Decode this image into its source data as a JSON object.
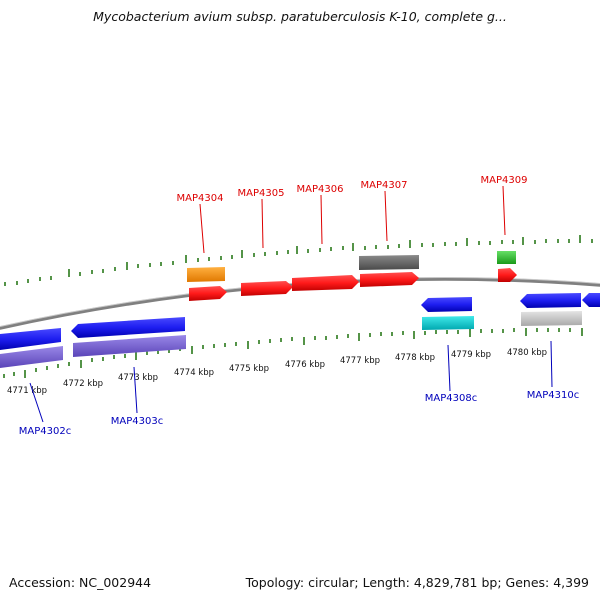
{
  "title": "Mycobacterium avium subsp. paratuberculosis K-10, complete g...",
  "footer": {
    "accession": "Accession: NC_002944",
    "summary": "Topology: circular; Length: 4,829,781 bp; Genes: 4,399"
  },
  "colors": {
    "forward_label": "#dd0000",
    "reverse_label": "#0000bb",
    "ticks": "#2a7a1a",
    "backbone": "#808080"
  },
  "scale": {
    "unit": "kbp",
    "ticks": [
      {
        "kbp": 4771,
        "label": "4771 kbp"
      },
      {
        "kbp": 4772,
        "label": "4772 kbp"
      },
      {
        "kbp": 4773,
        "label": "4773 kbp"
      },
      {
        "kbp": 4774,
        "label": "4774 kbp"
      },
      {
        "kbp": 4775,
        "label": "4775 kbp"
      },
      {
        "kbp": 4776,
        "label": "4776 kbp"
      },
      {
        "kbp": 4777,
        "label": "4777 kbp"
      },
      {
        "kbp": 4778,
        "label": "4778 kbp"
      },
      {
        "kbp": 4779,
        "label": "4779 kbp"
      },
      {
        "kbp": 4780,
        "label": "4780 kbp"
      }
    ]
  },
  "labels": {
    "forward": [
      "MAP4304",
      "MAP4305",
      "MAP4306",
      "MAP4307",
      "MAP4309"
    ],
    "reverse": [
      "MAP4302c",
      "MAP4303c",
      "MAP4308c",
      "MAP4310c"
    ]
  }
}
